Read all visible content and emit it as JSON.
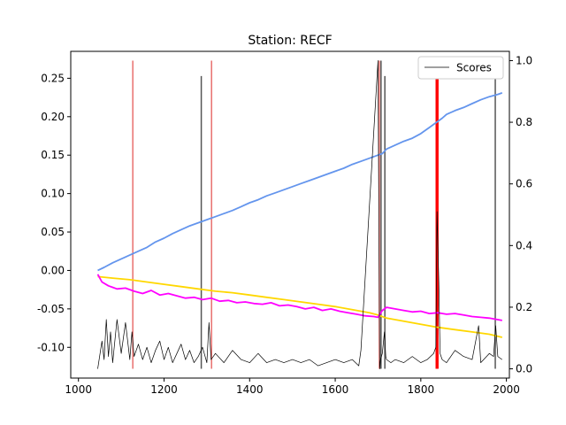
{
  "chart_data": {
    "type": "line",
    "title": "Station: RECF",
    "xlabel": "",
    "ylabel_left": "",
    "ylabel_right": "",
    "xlim": [
      982,
      2007
    ],
    "ylim_left": [
      -0.14,
      0.285
    ],
    "ylim_right": [
      -0.03,
      1.03
    ],
    "x_ticks": [
      1000,
      1200,
      1400,
      1600,
      1800,
      2000
    ],
    "y_left_ticks": [
      -0.1,
      -0.05,
      0.0,
      0.05,
      0.1,
      0.15,
      0.2,
      0.25
    ],
    "y_right_ticks": [
      0.0,
      0.2,
      0.4,
      0.6,
      0.8,
      1.0
    ],
    "grid": false,
    "legend": {
      "position": "top-right",
      "entries": [
        "Scores"
      ]
    },
    "series": [
      {
        "color": "#6495ed",
        "axis": "left",
        "x": [
          1045,
          1060,
          1080,
          1100,
          1120,
          1140,
          1160,
          1180,
          1200,
          1220,
          1240,
          1260,
          1280,
          1300,
          1320,
          1340,
          1360,
          1380,
          1400,
          1420,
          1440,
          1460,
          1480,
          1500,
          1520,
          1540,
          1560,
          1580,
          1600,
          1620,
          1640,
          1660,
          1680,
          1700,
          1710,
          1720,
          1740,
          1760,
          1780,
          1800,
          1810,
          1820,
          1830,
          1840,
          1850,
          1860,
          1880,
          1900,
          1920,
          1940,
          1960,
          1980,
          1990
        ],
        "y": [
          0.0,
          0.004,
          0.01,
          0.015,
          0.02,
          0.025,
          0.03,
          0.037,
          0.042,
          0.048,
          0.053,
          0.058,
          0.062,
          0.066,
          0.07,
          0.074,
          0.078,
          0.083,
          0.088,
          0.092,
          0.097,
          0.101,
          0.105,
          0.109,
          0.113,
          0.117,
          0.121,
          0.125,
          0.129,
          0.133,
          0.138,
          0.142,
          0.146,
          0.15,
          0.152,
          0.158,
          0.163,
          0.168,
          0.172,
          0.178,
          0.182,
          0.186,
          0.19,
          0.194,
          0.198,
          0.203,
          0.208,
          0.212,
          0.217,
          0.222,
          0.226,
          0.229,
          0.231
        ]
      },
      {
        "color": "#ffd700",
        "axis": "left",
        "x": [
          1045,
          1080,
          1120,
          1160,
          1200,
          1240,
          1280,
          1320,
          1360,
          1400,
          1440,
          1480,
          1520,
          1560,
          1600,
          1640,
          1680,
          1700,
          1720,
          1760,
          1800,
          1840,
          1880,
          1920,
          1960,
          1990
        ],
        "y": [
          -0.008,
          -0.01,
          -0.012,
          -0.015,
          -0.018,
          -0.021,
          -0.024,
          -0.027,
          -0.029,
          -0.032,
          -0.035,
          -0.038,
          -0.041,
          -0.044,
          -0.047,
          -0.051,
          -0.055,
          -0.058,
          -0.062,
          -0.066,
          -0.07,
          -0.074,
          -0.077,
          -0.08,
          -0.083,
          -0.087
        ]
      },
      {
        "color": "#ff00ff",
        "axis": "left",
        "x": [
          1045,
          1055,
          1070,
          1090,
          1110,
          1130,
          1150,
          1170,
          1190,
          1210,
          1230,
          1250,
          1270,
          1290,
          1310,
          1330,
          1350,
          1370,
          1390,
          1410,
          1430,
          1450,
          1470,
          1490,
          1510,
          1530,
          1550,
          1570,
          1590,
          1610,
          1630,
          1650,
          1670,
          1690,
          1700,
          1710,
          1720,
          1740,
          1760,
          1780,
          1800,
          1820,
          1840,
          1860,
          1880,
          1900,
          1920,
          1940,
          1960,
          1980,
          1990
        ],
        "y": [
          -0.005,
          -0.015,
          -0.02,
          -0.024,
          -0.023,
          -0.027,
          -0.03,
          -0.026,
          -0.032,
          -0.03,
          -0.033,
          -0.036,
          -0.035,
          -0.038,
          -0.036,
          -0.04,
          -0.039,
          -0.042,
          -0.041,
          -0.043,
          -0.044,
          -0.042,
          -0.046,
          -0.045,
          -0.047,
          -0.05,
          -0.048,
          -0.052,
          -0.05,
          -0.053,
          -0.055,
          -0.057,
          -0.059,
          -0.06,
          -0.061,
          -0.052,
          -0.048,
          -0.05,
          -0.052,
          -0.054,
          -0.053,
          -0.056,
          -0.055,
          -0.057,
          -0.056,
          -0.058,
          -0.06,
          -0.061,
          -0.062,
          -0.064,
          -0.065
        ]
      },
      {
        "name": "Scores",
        "color": "#000000",
        "axis": "right",
        "x": [
          1045,
          1055,
          1060,
          1065,
          1070,
          1075,
          1080,
          1090,
          1100,
          1110,
          1120,
          1125,
          1130,
          1140,
          1150,
          1160,
          1170,
          1180,
          1190,
          1200,
          1210,
          1220,
          1230,
          1240,
          1250,
          1260,
          1270,
          1280,
          1290,
          1300,
          1305,
          1310,
          1320,
          1340,
          1360,
          1380,
          1400,
          1420,
          1440,
          1460,
          1480,
          1500,
          1520,
          1540,
          1560,
          1580,
          1600,
          1620,
          1640,
          1655,
          1660,
          1700,
          1702,
          1704,
          1706,
          1710,
          1715,
          1718,
          1720,
          1730,
          1740,
          1760,
          1780,
          1800,
          1815,
          1830,
          1835,
          1838,
          1842,
          1845,
          1850,
          1860,
          1880,
          1900,
          1920,
          1935,
          1940,
          1960,
          1970,
          1975,
          1980,
          1990
        ],
        "y": [
          0.0,
          0.09,
          0.03,
          0.16,
          0.04,
          0.12,
          0.02,
          0.16,
          0.05,
          0.15,
          0.03,
          0.12,
          0.04,
          0.08,
          0.03,
          0.07,
          0.02,
          0.06,
          0.09,
          0.03,
          0.07,
          0.02,
          0.05,
          0.08,
          0.03,
          0.06,
          0.02,
          0.04,
          0.07,
          0.02,
          0.15,
          0.03,
          0.05,
          0.02,
          0.06,
          0.03,
          0.02,
          0.05,
          0.02,
          0.03,
          0.02,
          0.03,
          0.02,
          0.03,
          0.01,
          0.02,
          0.03,
          0.02,
          0.03,
          0.01,
          0.06,
          1.0,
          0.5,
          0.0,
          0.03,
          0.05,
          0.12,
          0.04,
          0.03,
          0.02,
          0.03,
          0.02,
          0.04,
          0.02,
          0.03,
          0.05,
          0.07,
          0.51,
          0.28,
          0.05,
          0.03,
          0.02,
          0.06,
          0.04,
          0.03,
          0.14,
          0.02,
          0.05,
          0.04,
          0.14,
          0.04,
          0.03
        ]
      }
    ],
    "vertical_markers": [
      {
        "x": 1127,
        "color": "#e8706d",
        "top": 1.0
      },
      {
        "x": 1287,
        "color": "#555555",
        "top": 0.95
      },
      {
        "x": 1311,
        "color": "#e8706d",
        "top": 1.0
      },
      {
        "x": 1703,
        "color": "#e8706d",
        "top": 1.0
      },
      {
        "x": 1707,
        "color": "#555555",
        "top": 1.0
      },
      {
        "x": 1716,
        "color": "#555555",
        "top": 0.95
      },
      {
        "x": 1836,
        "color": "#ff0000",
        "top": 0.95
      },
      {
        "x": 1838,
        "color": "#ff0000",
        "top": 0.95
      },
      {
        "x": 1840,
        "color": "#ff0000",
        "top": 0.95
      },
      {
        "x": 1974,
        "color": "#555555",
        "top": 0.95
      }
    ]
  }
}
